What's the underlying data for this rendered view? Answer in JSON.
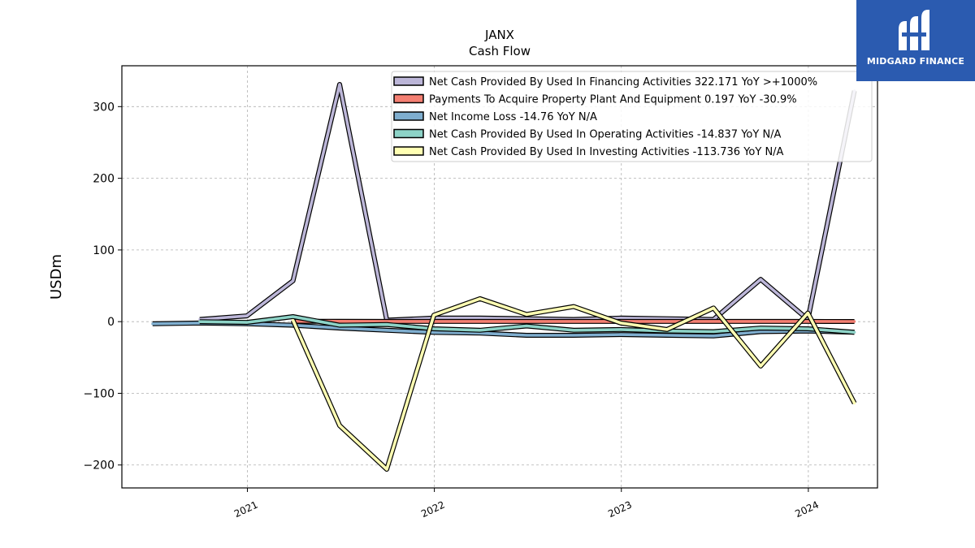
{
  "brand": {
    "name": "MIDGARD FINANCE",
    "bg": "#2b5bb0"
  },
  "chart_data": {
    "type": "line",
    "title": "JANX",
    "subtitle": "Cash Flow",
    "ylabel": "USDm",
    "xlabel": "",
    "xlim": [
      "2020-05-01",
      "2024-05-15"
    ],
    "ylim": [
      -232,
      357
    ],
    "yticks": [
      -200,
      -100,
      0,
      100,
      200,
      300
    ],
    "ytick_labels": [
      "−200",
      "−100",
      "0",
      "100",
      "200",
      "300"
    ],
    "xticks": [
      "2021-01-01",
      "2022-01-01",
      "2023-01-01",
      "2024-01-01"
    ],
    "xtick_labels": [
      "2021",
      "2022",
      "2023",
      "2024"
    ],
    "grid": true,
    "legend_position": "top-right",
    "series": [
      {
        "name": "Net Cash Provided By Used In Financing Activities",
        "legend": "Net Cash Provided By Used In Financing Activities  322.171 YoY >+1000%",
        "color": "#bcb6d8",
        "x": [
          "2020-09-30",
          "2020-12-31",
          "2021-03-31",
          "2021-06-30",
          "2021-09-30",
          "2021-12-31",
          "2022-03-31",
          "2022-06-30",
          "2022-09-30",
          "2022-12-31",
          "2023-03-31",
          "2023-06-30",
          "2023-09-30",
          "2023-12-31",
          "2024-03-31"
        ],
        "y": [
          3,
          8,
          57,
          331,
          2,
          5,
          5,
          4,
          3,
          5,
          4,
          3,
          59,
          3,
          322
        ]
      },
      {
        "name": "Payments To Acquire Property Plant And Equipment",
        "legend": "Payments To Acquire Property Plant And Equipment  0.197 YoY -30.9%",
        "color": "#f47f72",
        "x": [
          "2021-03-31",
          "2021-06-30",
          "2021-09-30",
          "2021-12-31",
          "2022-03-31",
          "2022-06-30",
          "2022-09-30",
          "2022-12-31",
          "2023-03-31",
          "2023-06-30",
          "2023-09-30",
          "2023-12-31",
          "2024-03-31"
        ],
        "y": [
          0.5,
          0.4,
          0.3,
          0.3,
          0.3,
          0.3,
          0.3,
          0.3,
          0.3,
          0.3,
          0.3,
          0.3,
          0.197
        ]
      },
      {
        "name": "Net Income Loss",
        "legend": "Net Income Loss  -14.76 YoY N/A",
        "color": "#7faecf",
        "x": [
          "2020-06-30",
          "2020-09-30",
          "2020-12-31",
          "2021-03-31",
          "2021-06-30",
          "2021-09-30",
          "2021-12-31",
          "2022-03-31",
          "2022-06-30",
          "2022-09-30",
          "2022-12-31",
          "2023-03-31",
          "2023-06-30",
          "2023-09-30",
          "2023-12-31",
          "2024-03-31"
        ],
        "y": [
          -3,
          -2,
          -3,
          -5,
          -9,
          -12,
          -15,
          -16,
          -19,
          -19,
          -18,
          -19,
          -20,
          -14,
          -13,
          -14.76
        ]
      },
      {
        "name": "Net Cash Provided By Used In Operating Activities",
        "legend": "Net Cash Provided By Used In Operating Activities  -14.837 YoY N/A",
        "color": "#8dd3c7",
        "x": [
          "2020-09-30",
          "2020-12-31",
          "2021-03-31",
          "2021-06-30",
          "2021-09-30",
          "2021-12-31",
          "2022-03-31",
          "2022-06-30",
          "2022-09-30",
          "2022-12-31",
          "2023-03-31",
          "2023-06-30",
          "2023-09-30",
          "2023-12-31",
          "2024-03-31"
        ],
        "y": [
          0,
          -1,
          7,
          -5,
          -4,
          -10,
          -12,
          -6,
          -12,
          -11,
          -13,
          -14,
          -9,
          -10,
          -14.837
        ]
      },
      {
        "name": "Net Cash Provided By Used In Investing Activities",
        "legend": "Net Cash Provided By Used In Investing Activities  -113.736 YoY N/A",
        "color": "#ffffb3",
        "x": [
          "2021-03-31",
          "2021-06-30",
          "2021-09-30",
          "2021-12-31",
          "2022-03-31",
          "2022-06-30",
          "2022-09-30",
          "2022-12-31",
          "2023-03-31",
          "2023-06-30",
          "2023-09-30",
          "2023-12-31",
          "2024-03-31"
        ],
        "y": [
          2,
          -145,
          -206,
          9,
          32,
          10,
          21,
          -2,
          -11,
          19,
          -62,
          12,
          -113.736
        ]
      }
    ]
  }
}
